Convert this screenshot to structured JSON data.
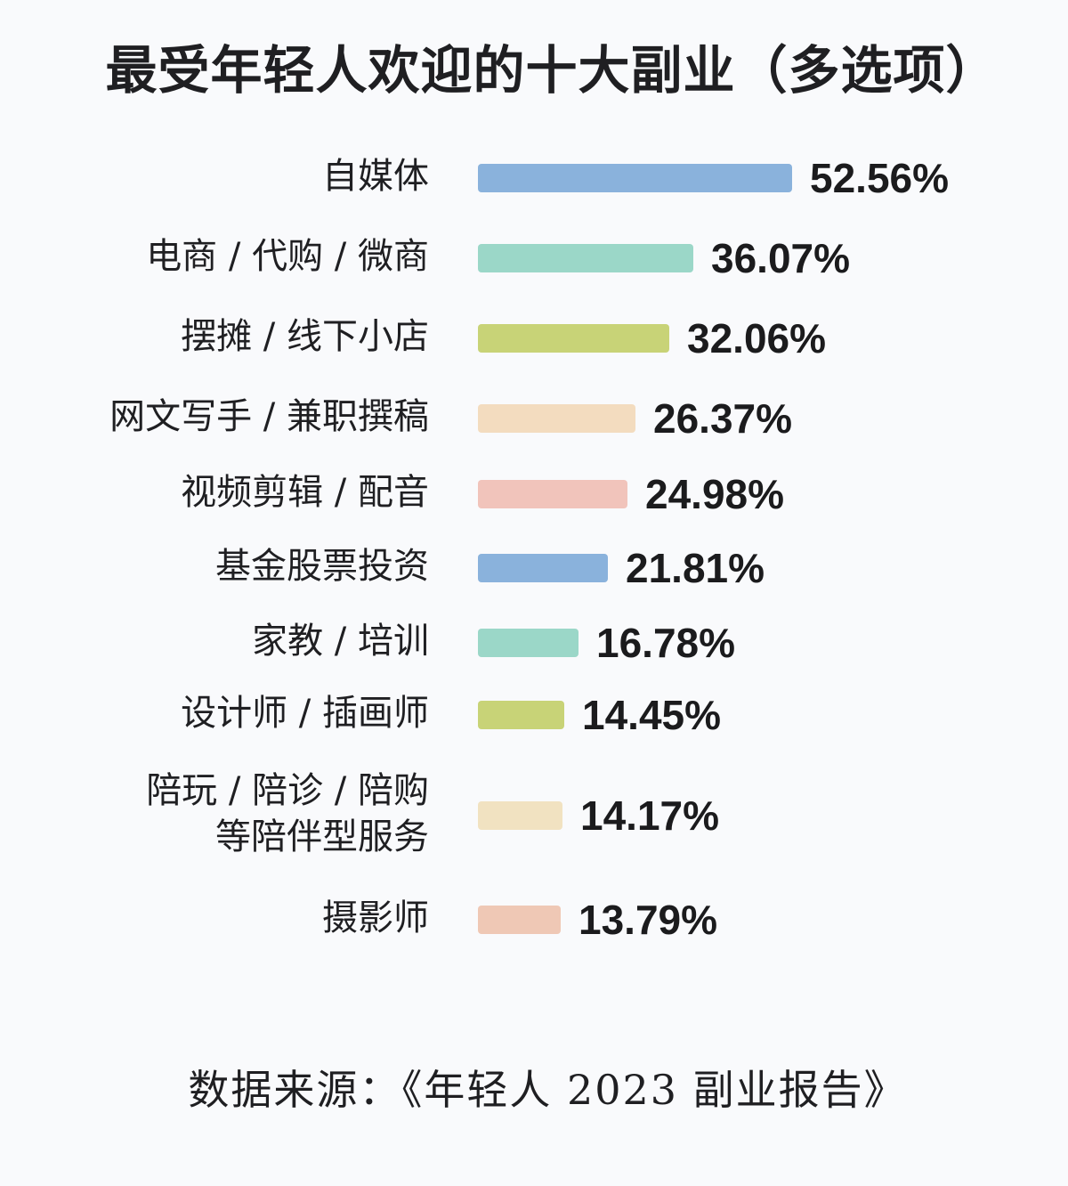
{
  "title": "最受年轻人欢迎的十大副业（多选项）",
  "source": "数据来源：《年轻人 2023 副业报告》",
  "rows": [
    {
      "label": "自媒体",
      "value_text": "52.56%",
      "value": 52.56,
      "color": "#8ab2dc"
    },
    {
      "label": "电商 / 代购 / 微商",
      "value_text": "36.07%",
      "value": 36.07,
      "color": "#9bd7c8"
    },
    {
      "label": "摆摊 / 线下小店",
      "value_text": "32.06%",
      "value": 32.06,
      "color": "#c8d377"
    },
    {
      "label": "网文写手 / 兼职撰稿",
      "value_text": "26.37%",
      "value": 26.37,
      "color": "#f3dcbf"
    },
    {
      "label": "视频剪辑 / 配音",
      "value_text": "24.98%",
      "value": 24.98,
      "color": "#f1c4bb"
    },
    {
      "label": "基金股票投资",
      "value_text": "21.81%",
      "value": 21.81,
      "color": "#8ab2dc"
    },
    {
      "label": "家教 / 培训",
      "value_text": "16.78%",
      "value": 16.78,
      "color": "#9bd7c8"
    },
    {
      "label": "设计师 / 插画师",
      "value_text": "14.45%",
      "value": 14.45,
      "color": "#c8d377"
    },
    {
      "label": "陪玩 / 陪诊 / 陪购\n等陪伴型服务",
      "value_text": "14.17%",
      "value": 14.17,
      "color": "#f1e2c1"
    },
    {
      "label": "摄影师",
      "value_text": "13.79%",
      "value": 13.79,
      "color": "#efc8b5"
    }
  ],
  "chart_data": {
    "type": "bar",
    "orientation": "horizontal",
    "title": "最受年轻人欢迎的十大副业（多选项）",
    "categories": [
      "自媒体",
      "电商/代购/微商",
      "摆摊/线下小店",
      "网文写手/兼职撰稿",
      "视频剪辑/配音",
      "基金股票投资",
      "家教/培训",
      "设计师/插画师",
      "陪玩/陪诊/陪购等陪伴型服务",
      "摄影师"
    ],
    "values": [
      52.56,
      36.07,
      32.06,
      26.37,
      24.98,
      21.81,
      16.78,
      14.45,
      14.17,
      13.79
    ],
    "unit": "%",
    "xlabel": "",
    "ylabel": "",
    "grid": false,
    "legend": false,
    "annotations": [
      "数据来源：《年轻人 2023 副业报告》"
    ]
  }
}
